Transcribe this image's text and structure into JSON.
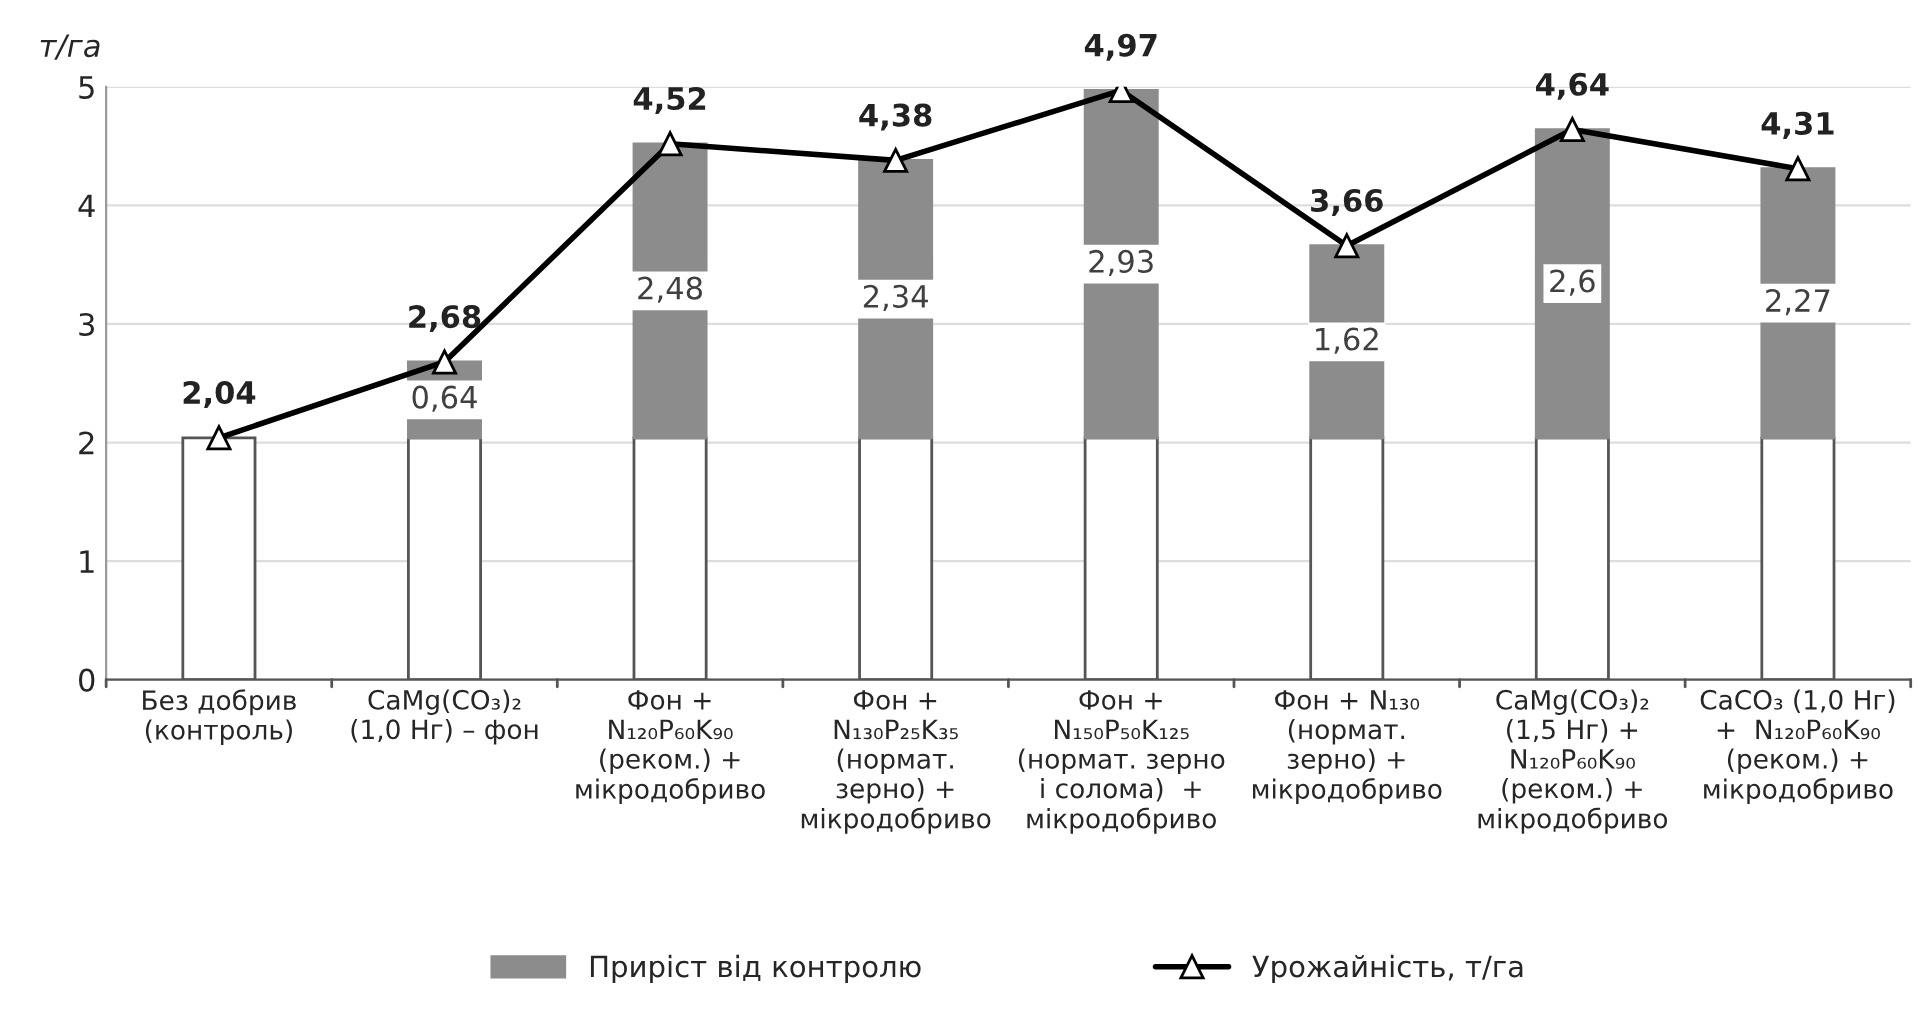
{
  "chart_data": {
    "type": "bar",
    "stacked": true,
    "ylabel": "т/га",
    "categories": [
      "Без добрив\n(контроль)",
      "CaMg(CO₃)₂\n(1,0 Нг) – фон",
      "Фон +\nN₁₂₀P₆₀K₉₀\n(реком.) +\nмікродобриво",
      "Фон +\nN₁₃₀P₂₅K₃₅\n(нормат.\nзерно) +\nмікродобриво",
      "Фон +\nN₁₅₀P₅₀K₁₂₅\n(нормат. зерно\nі солома)  +\nмікродобриво",
      "Фон + N₁₃₀\n(нормат.\nзерно) +\nмікродобриво",
      "CaMg(CO₃)₂\n(1,5 Нг) +\nN₁₂₀P₆₀K₉₀\n(реком.) +\nмікродобриво",
      "CaCO₃ (1,0 Нг)\n+  N₁₂₀P₆₀K₉₀\n(реком.) +\nмікродобриво"
    ],
    "series": [
      {
        "color": "#ffffff",
        "values": [
          2.04,
          2.04,
          2.04,
          2.04,
          2.04,
          2.04,
          2.04,
          2.04
        ]
      },
      {
        "name": "Приріст від контролю",
        "color": "#8c8c8c",
        "values": [
          null,
          0.64,
          2.48,
          2.34,
          2.93,
          1.62,
          2.6,
          2.27
        ],
        "value_labels": [
          null,
          "0,64",
          "2,48",
          "2,34",
          "2,93",
          "1,62",
          "2,6",
          "2,27"
        ]
      },
      {
        "name": "Урожайність, т/га",
        "type": "line",
        "color": "#000000",
        "marker": "triangle",
        "line_style": "solid",
        "values": [
          2.04,
          2.68,
          4.52,
          4.38,
          4.97,
          3.66,
          4.64,
          4.31
        ],
        "value_labels": [
          "2,04",
          "2,68",
          "4,52",
          "4,38",
          "4,97",
          "3,66",
          "4,64",
          "4,31"
        ]
      }
    ],
    "ylim": [
      0,
      5
    ],
    "yticks": [
      0,
      1,
      2,
      3,
      4,
      5
    ],
    "grid": "y",
    "legend": "bottom"
  }
}
